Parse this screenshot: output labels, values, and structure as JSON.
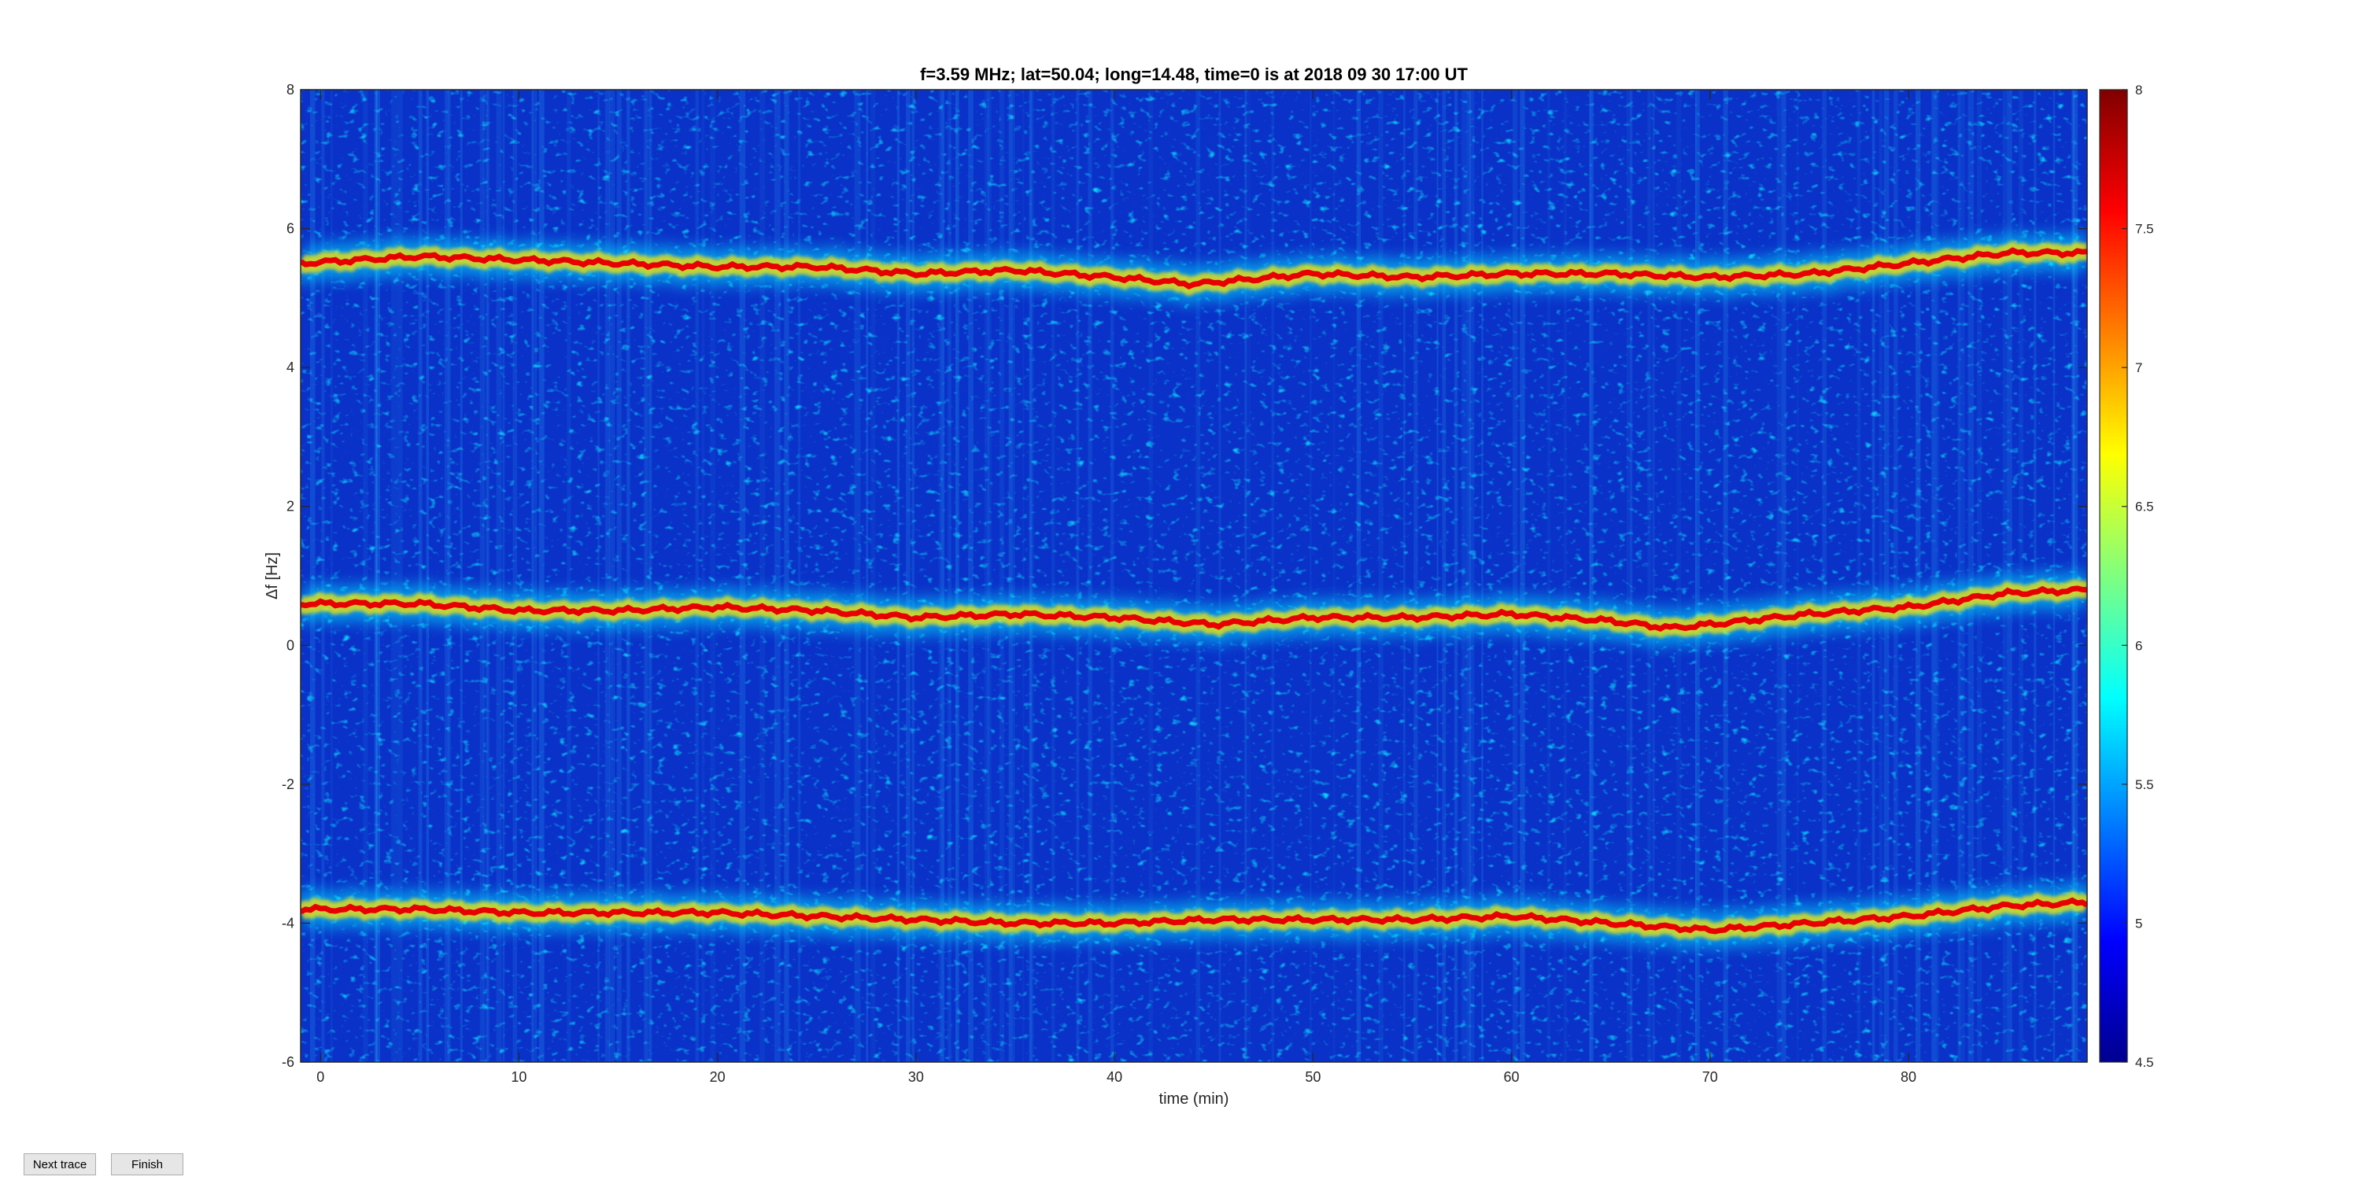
{
  "buttons": {
    "next_label": "Next trace",
    "finish_label": "Finish"
  },
  "chart_data": {
    "type": "heatmap",
    "title": "f=3.59 MHz;  lat=50.04; long=14.48, time=0 is at 2018 09 30 17:00 UT",
    "xlabel": "time (min)",
    "ylabel": "Δf [Hz]",
    "xlim": [
      -1,
      89
    ],
    "ylim": [
      -6,
      8
    ],
    "xticks": [
      0,
      10,
      20,
      30,
      40,
      50,
      60,
      70,
      80
    ],
    "yticks": [
      -6,
      -4,
      -2,
      0,
      2,
      4,
      6,
      8
    ],
    "colorbar": {
      "min": 4.5,
      "max": 8,
      "ticks": [
        "8",
        "7.5",
        "7",
        "6.5",
        "6",
        "5.5",
        "5",
        "4.5"
      ],
      "colormap": "jet"
    },
    "grid": false,
    "traces": [
      {
        "x": [
          -1,
          5,
          10,
          15,
          20,
          25,
          30,
          35,
          40,
          44,
          50,
          55,
          60,
          65,
          70,
          75,
          80,
          85,
          89
        ],
        "y": [
          5.5,
          5.6,
          5.55,
          5.5,
          5.45,
          5.45,
          5.35,
          5.4,
          5.3,
          5.2,
          5.35,
          5.3,
          5.35,
          5.35,
          5.3,
          5.35,
          5.5,
          5.65,
          5.65
        ]
      },
      {
        "x": [
          -1,
          5,
          10,
          15,
          20,
          25,
          30,
          35,
          40,
          45,
          50,
          55,
          60,
          65,
          68,
          70,
          75,
          80,
          85,
          89
        ],
        "y": [
          0.6,
          0.6,
          0.5,
          0.5,
          0.55,
          0.5,
          0.4,
          0.45,
          0.4,
          0.3,
          0.4,
          0.4,
          0.45,
          0.35,
          0.25,
          0.3,
          0.45,
          0.55,
          0.75,
          0.8
        ]
      },
      {
        "x": [
          -1,
          5,
          10,
          15,
          20,
          25,
          30,
          35,
          40,
          45,
          50,
          55,
          60,
          65,
          70,
          75,
          80,
          85,
          89
        ],
        "y": [
          -3.8,
          -3.8,
          -3.85,
          -3.85,
          -3.85,
          -3.9,
          -3.95,
          -4.0,
          -4.0,
          -3.95,
          -3.95,
          -3.95,
          -3.9,
          -4.0,
          -4.1,
          -4.0,
          -3.9,
          -3.75,
          -3.7
        ]
      }
    ]
  }
}
